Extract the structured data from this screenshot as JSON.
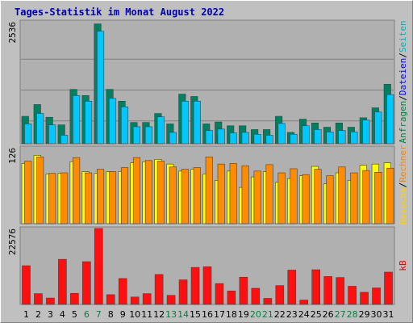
{
  "chart_data": {
    "type": "bar",
    "title": "Tages-Statistik im Monat August 2022",
    "days": [
      "1",
      "2",
      "3",
      "4",
      "5",
      "6",
      "7",
      "8",
      "9",
      "10",
      "11",
      "12",
      "13",
      "14",
      "15",
      "16",
      "17",
      "18",
      "19",
      "20",
      "21",
      "22",
      "23",
      "24",
      "25",
      "26",
      "27",
      "28",
      "29",
      "30",
      "31"
    ],
    "weekend_days": [
      "6",
      "7",
      "13",
      "14",
      "20",
      "21",
      "27",
      "28"
    ],
    "panels": [
      {
        "ymax_label": "2536",
        "ymax": 2536,
        "side_labels": [
          {
            "text": "Anfragen",
            "color": "#008040"
          },
          {
            "text": "/",
            "color": "#000000"
          },
          {
            "text": "Dateien",
            "color": "#0000ff"
          },
          {
            "text": "/",
            "color": "#000000"
          },
          {
            "text": "Seiten",
            "color": "#00b0c0"
          }
        ],
        "series": [
          {
            "color": "#008060",
            "values": [
              580,
              830,
              560,
              400,
              1150,
              1020,
              2536,
              1150,
              900,
              450,
              450,
              640,
              420,
              1050,
              1000,
              420,
              460,
              380,
              380,
              300,
              300,
              580,
              240,
              520,
              440,
              350,
              440,
              350,
              550,
              760,
              1260
            ]
          },
          {
            "color": "#00c8ff",
            "values": [
              420,
              640,
              400,
              180,
              1020,
              900,
              2380,
              960,
              780,
              360,
              360,
              570,
              240,
              900,
              900,
              280,
              310,
              230,
              240,
              200,
              180,
              430,
              200,
              380,
              300,
              250,
              280,
              250,
              500,
              670,
              1040
            ]
          }
        ]
      },
      {
        "ymax_label": "126",
        "ymax": 126,
        "side_labels": [
          {
            "text": "Besuche",
            "color": "#ffd000"
          },
          {
            "text": "/",
            "color": "#000000"
          },
          {
            "text": "Rechner",
            "color": "#ff8000"
          }
        ],
        "series": [
          {
            "color": "#ffff00",
            "values": [
              103,
              117,
              85,
              86,
              106,
              89,
              86,
              89,
              89,
              104,
              106,
              110,
              102,
              90,
              93,
              85,
              74,
              90,
              62,
              80,
              89,
              71,
              77,
              82,
              98,
              68,
              87,
              74,
              100,
              102,
              104
            ]
          },
          {
            "color": "#ff8c00",
            "values": [
              107,
              114,
              86,
              87,
              113,
              87,
              93,
              89,
              96,
              113,
              108,
              107,
              97,
              93,
              96,
              114,
              102,
              103,
              99,
              90,
              101,
              87,
              94,
              84,
              93,
              82,
              97,
              87,
              91,
              88,
              95
            ]
          }
        ]
      },
      {
        "ymax_label": "22576",
        "ymax": 22576,
        "side_labels": [
          {
            "text": "kB",
            "color": "#e00000"
          }
        ],
        "series": [
          {
            "color": "#ff1010",
            "values": [
              11500,
              3200,
              1900,
              13400,
              3300,
              12700,
              22576,
              2900,
              7700,
              2200,
              3200,
              8900,
              2700,
              7300,
              11000,
              11200,
              6200,
              4000,
              8100,
              4800,
              1800,
              5600,
              10200,
              1300,
              10300,
              8300,
              8000,
              5400,
              3600,
              4900,
              9600
            ]
          }
        ]
      }
    ]
  },
  "colors": {
    "background": "#c0c0c0",
    "plot_bg": "#b0b0b0",
    "weekday_label": "#000000",
    "weekend_label": "#008040"
  }
}
